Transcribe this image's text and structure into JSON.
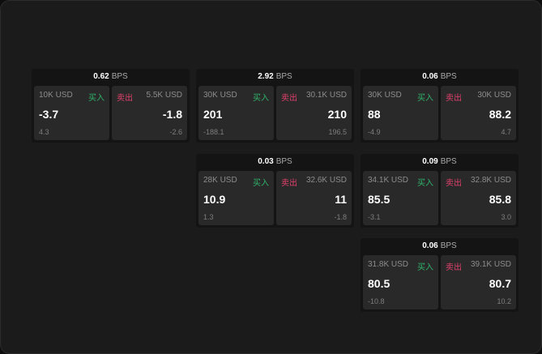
{
  "unit": "BPS",
  "buy_label": "买入",
  "sell_label": "卖出",
  "colors": {
    "buy": "#2fb36a",
    "sell": "#e0406b"
  },
  "cards": [
    {
      "bps": "0.62",
      "buy": {
        "size": "10K USD",
        "price": "-3.7",
        "diff": "4.3"
      },
      "sell": {
        "size": "5.5K USD",
        "price": "-1.8",
        "diff": "-2.6"
      }
    },
    {
      "bps": "2.92",
      "buy": {
        "size": "30K USD",
        "price": "201",
        "diff": "-188.1"
      },
      "sell": {
        "size": "30.1K USD",
        "price": "210",
        "diff": "196.5"
      }
    },
    {
      "bps": "0.06",
      "buy": {
        "size": "30K USD",
        "price": "88",
        "diff": "-4.9"
      },
      "sell": {
        "size": "30K USD",
        "price": "88.2",
        "diff": "4.7"
      }
    },
    {
      "bps": "0.03",
      "buy": {
        "size": "28K USD",
        "price": "10.9",
        "diff": "1.3"
      },
      "sell": {
        "size": "32.6K USD",
        "price": "11",
        "diff": "-1.8"
      }
    },
    {
      "bps": "0.09",
      "buy": {
        "size": "34.1K USD",
        "price": "85.5",
        "diff": "-3.1"
      },
      "sell": {
        "size": "32.8K USD",
        "price": "85.8",
        "diff": "3.0"
      }
    },
    {
      "bps": "0.06",
      "buy": {
        "size": "31.8K USD",
        "price": "80.5",
        "diff": "-10.8"
      },
      "sell": {
        "size": "39.1K USD",
        "price": "80.7",
        "diff": "10.2"
      }
    }
  ]
}
